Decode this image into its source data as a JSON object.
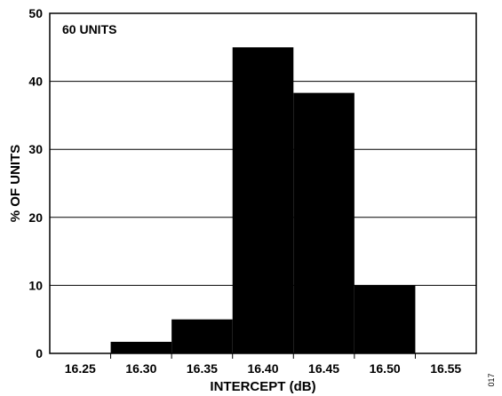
{
  "chart_data": {
    "type": "bar",
    "title": "",
    "annotation": "60 UNITS",
    "xlabel": "INTERCEPT (dB)",
    "ylabel": "% OF UNITS",
    "categories": [
      "16.25",
      "16.30",
      "16.35",
      "16.40",
      "16.45",
      "16.50",
      "16.55"
    ],
    "values": [
      0,
      1.7,
      5.0,
      45.0,
      38.3,
      10.0,
      0
    ],
    "ylim": [
      0,
      50
    ],
    "yticks": [
      "0",
      "10",
      "20",
      "30",
      "40",
      "50"
    ],
    "grid": true,
    "legend": "none",
    "colors": {
      "bar": "#000000",
      "grid": "#000000",
      "frame": "#000000"
    }
  },
  "side_code": "017"
}
